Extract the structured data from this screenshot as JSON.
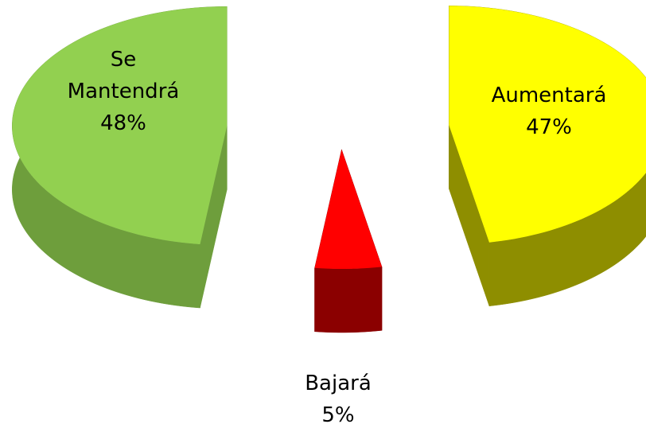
{
  "chart_data": {
    "type": "pie",
    "categories": [
      "Aumentará",
      "Bajará",
      "Se Mantendrá"
    ],
    "values": [
      47,
      5,
      48
    ],
    "value_labels": [
      "47%",
      "5%",
      "48%"
    ],
    "colors": [
      "#ffff00",
      "#ff0000",
      "#92d050"
    ],
    "side_colors": [
      "#8e8e00",
      "#8b0000",
      "#6e9e3c"
    ]
  }
}
